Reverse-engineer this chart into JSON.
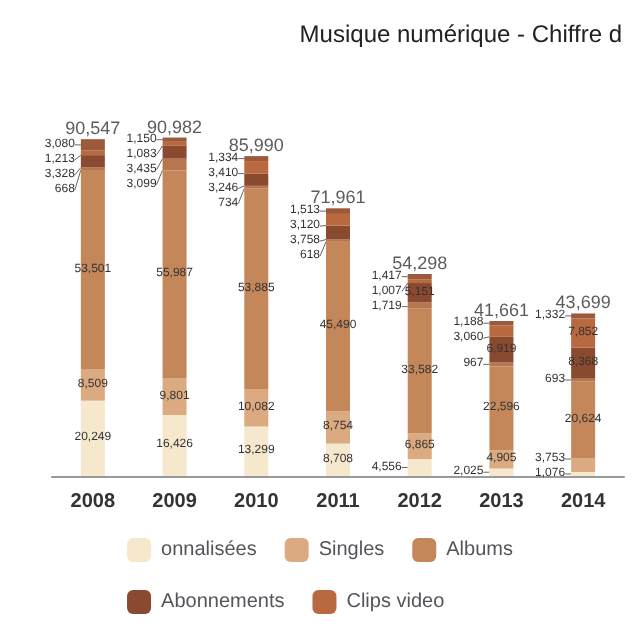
{
  "chart_data": {
    "type": "bar",
    "stacked": true,
    "title": "Musique numérique - Chiffre d",
    "categories": [
      "2008",
      "2009",
      "2010",
      "2011",
      "2012",
      "2013",
      "2014"
    ],
    "series": [
      {
        "name": "onnalisées",
        "color": "#f5e8cc",
        "values": [
          20249,
          16426,
          13299,
          8708,
          4556,
          2025,
          1076
        ],
        "value_labels": [
          "20,249",
          "16,426",
          "13,299",
          "8,708",
          "4,556",
          "2,025",
          "1,076"
        ]
      },
      {
        "name": "Singles",
        "color": "#dcaa80",
        "values": [
          8509,
          9801,
          10082,
          8754,
          6865,
          4905,
          3753
        ],
        "value_labels": [
          "8,509",
          "9,801",
          "10,082",
          "8,754",
          "6,865",
          "4,905",
          "3,753"
        ]
      },
      {
        "name": "Albums",
        "color": "#c4875a",
        "values": [
          53501,
          55987,
          53885,
          45490,
          33582,
          22596,
          20624
        ],
        "value_labels": [
          "53,501",
          "55,987",
          "53,885",
          "45,490",
          "33,582",
          "22,596",
          "20,624"
        ]
      },
      {
        "color": "#b77650",
        "values": [
          668,
          3099,
          734,
          618,
          1719,
          967,
          693
        ],
        "value_labels": [
          "668",
          "3,099",
          "734",
          "618",
          "1,719",
          "967",
          "693"
        ]
      },
      {
        "name": "Abonnements",
        "color": "#8a4a30",
        "values": [
          3328,
          3435,
          3246,
          3758,
          5151,
          6919,
          8368
        ],
        "value_labels": [
          "3,328",
          "3,435",
          "3,246",
          "3,758",
          "5,151",
          "6,919",
          "8,368"
        ]
      },
      {
        "name": "Clips video",
        "color": "#b8693f",
        "values": [
          1213,
          1083,
          3410,
          3120,
          1007,
          3060,
          7852
        ],
        "value_labels": [
          "1,213",
          "1,083",
          "3,410",
          "3,120",
          "1,007",
          "3,060",
          "7,852"
        ]
      },
      {
        "color": "#9c5a3a",
        "values": [
          3080,
          1150,
          1334,
          1513,
          1417,
          1188,
          1332
        ],
        "value_labels": [
          "3,080",
          "1,150",
          "1,334",
          "1,513",
          "1,417",
          "1,188",
          "1,332"
        ]
      }
    ],
    "totals": [
      "90,547",
      "90,982",
      "85,990",
      "71,961",
      "54,298",
      "41,661",
      "43,699"
    ],
    "legend": "bottom"
  }
}
